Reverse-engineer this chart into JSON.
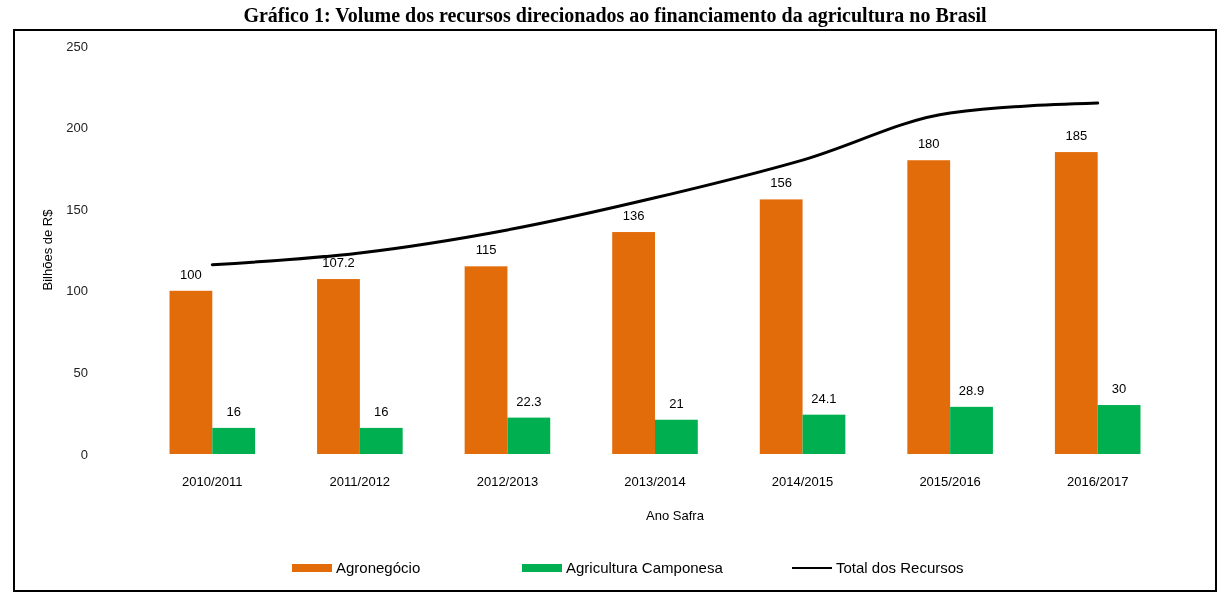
{
  "chart_data": {
    "type": "bar",
    "title": "Gráfico 1: Volume dos recursos direcionados ao financiamento da agricultura no Brasil",
    "xlabel": "Ano Safra",
    "ylabel": "Bilhões de R$",
    "categories": [
      "2010/2011",
      "2011/2012",
      "2012/2013",
      "2013/2014",
      "2014/2015",
      "2015/2016",
      "2016/2017"
    ],
    "series": [
      {
        "name": "Agronegócio",
        "color": "#e36c0a",
        "values": [
          100,
          107.2,
          115,
          136,
          156,
          180,
          185
        ]
      },
      {
        "name": "Agricultura Camponesa",
        "color": "#00b050",
        "values": [
          16,
          16,
          22.3,
          21,
          24.1,
          28.9,
          30
        ]
      },
      {
        "name": "Total dos Recursos",
        "type": "line",
        "color": "#000000",
        "values": [
          116,
          123.2,
          137.3,
          157,
          180.1,
          208.9,
          215
        ],
        "data_labels": false
      }
    ],
    "ylim": [
      0,
      250
    ],
    "yticks": [
      0,
      50,
      100,
      150,
      200,
      250
    ],
    "data_labels": true,
    "legend": "bottom",
    "grid": false
  }
}
